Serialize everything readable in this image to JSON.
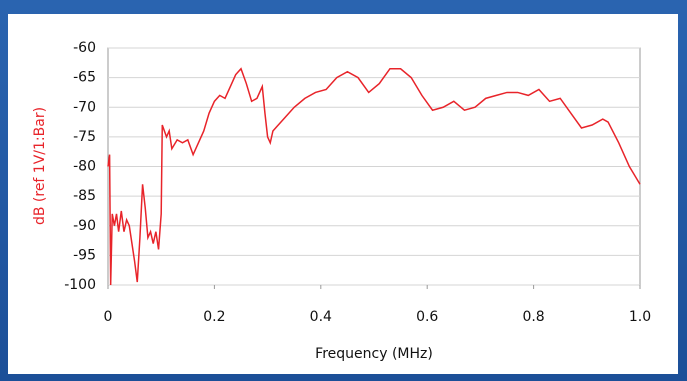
{
  "chart_data": {
    "type": "line",
    "xlabel": "Frequency (MHz)",
    "ylabel": "dB (ref  1V/1:Bar)",
    "x": [
      0,
      0.003,
      0.005,
      0.008,
      0.012,
      0.016,
      0.02,
      0.025,
      0.03,
      0.035,
      0.04,
      0.045,
      0.05,
      0.055,
      0.06,
      0.065,
      0.07,
      0.075,
      0.08,
      0.085,
      0.09,
      0.095,
      0.1,
      0.102,
      0.11,
      0.115,
      0.12,
      0.13,
      0.14,
      0.15,
      0.16,
      0.17,
      0.18,
      0.19,
      0.2,
      0.21,
      0.22,
      0.23,
      0.24,
      0.25,
      0.26,
      0.27,
      0.28,
      0.29,
      0.295,
      0.3,
      0.305,
      0.31,
      0.33,
      0.35,
      0.37,
      0.39,
      0.41,
      0.43,
      0.45,
      0.47,
      0.49,
      0.51,
      0.53,
      0.55,
      0.57,
      0.59,
      0.61,
      0.63,
      0.65,
      0.67,
      0.69,
      0.71,
      0.73,
      0.75,
      0.77,
      0.79,
      0.81,
      0.83,
      0.85,
      0.87,
      0.89,
      0.91,
      0.93,
      0.94,
      0.96,
      0.98,
      1.0
    ],
    "series": [
      {
        "color": "#e8242a",
        "values": [
          -80,
          -78,
          -100,
          -88,
          -90,
          -88,
          -91,
          -87.5,
          -91,
          -89,
          -90,
          -93,
          -96,
          -99.5,
          -92,
          -83,
          -87,
          -92,
          -91,
          -93,
          -91,
          -94,
          -88,
          -73,
          -75,
          -74,
          -77,
          -75.5,
          -76,
          -75.5,
          -78,
          -76,
          -74,
          -71,
          -69,
          -68,
          -68.5,
          -66.5,
          -64.5,
          -63.5,
          -66,
          -69,
          -68.5,
          -66.5,
          -71,
          -75,
          -76,
          -74,
          -72,
          -70,
          -68.5,
          -67.5,
          -67,
          -65,
          -64,
          -65,
          -67.5,
          -66,
          -63.5,
          -63.5,
          -65,
          -68,
          -70.5,
          -70,
          -69,
          -70.5,
          -70,
          -68.5,
          -68,
          -67.5,
          -67.5,
          -68,
          -67,
          -69,
          -68.5,
          -71,
          -73.5,
          -73,
          -72,
          -72.5,
          -76,
          -80,
          -83
        ]
      }
    ],
    "xlim": [
      0,
      1
    ],
    "xticks": [
      0,
      0.2,
      0.4,
      0.6,
      0.8,
      {
        "value": 1,
        "label": "1.0"
      }
    ],
    "ylim": [
      -100,
      -60
    ],
    "yticks": [
      -100,
      -95,
      -90,
      -85,
      -80,
      -75,
      -70,
      -65,
      -60
    ],
    "grid": true
  }
}
